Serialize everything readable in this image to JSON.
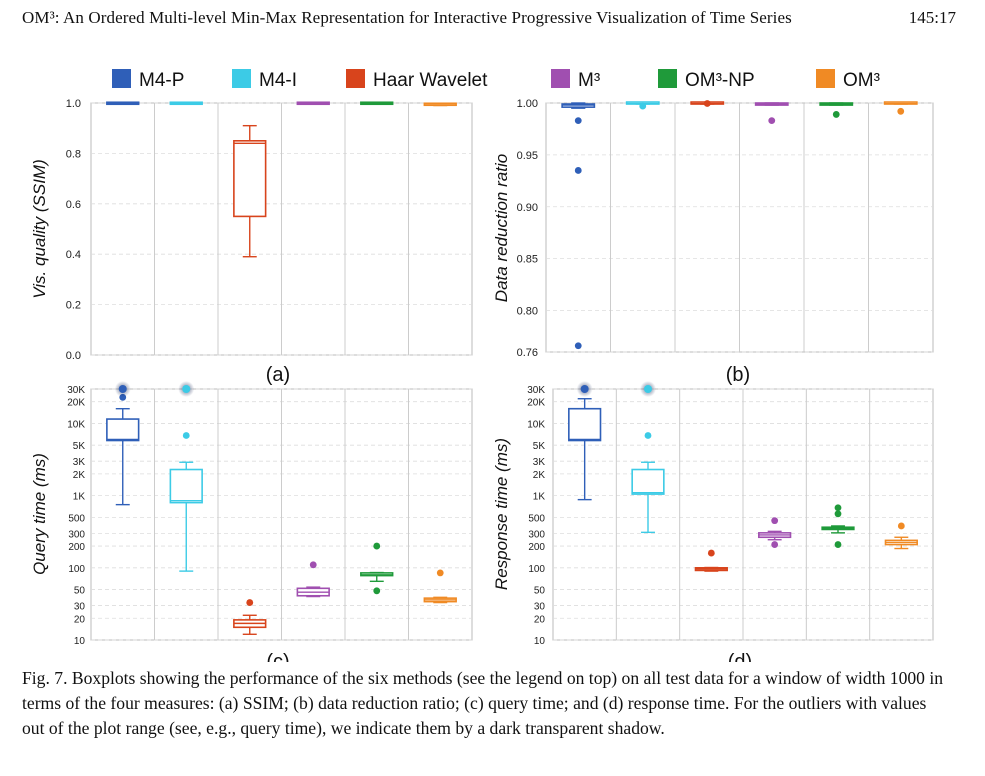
{
  "header": {
    "title": "OM³: An Ordered Multi-level Min-Max Representation for Interactive Progressive Visualization of Time Series",
    "page": "145:17"
  },
  "legend": [
    {
      "label": "M4-P",
      "color": "#2f5fb8"
    },
    {
      "label": "M4-I",
      "color": "#3ccbe6"
    },
    {
      "label": "Haar Wavelet",
      "color": "#d8441c"
    },
    {
      "label": "M³",
      "color": "#a04fb0"
    },
    {
      "label": "OM³-NP",
      "color": "#1f9a3a"
    },
    {
      "label": "OM³",
      "color": "#f08a24"
    }
  ],
  "chart_data": [
    {
      "type": "box",
      "panel": "(a)",
      "ylabel": "Vis. quality (SSIM)",
      "ylim": [
        0.0,
        1.0
      ],
      "yticks": [
        "1.0",
        "0.8",
        "0.6",
        "0.4",
        "0.2",
        "0.0"
      ],
      "ytick_values": [
        1.0,
        0.8,
        0.6,
        0.4,
        0.2,
        0.0
      ],
      "boxes": [
        {
          "series": "M4-P",
          "whislo": 0.995,
          "q1": 0.995,
          "med": 0.997,
          "q3": 0.999,
          "whishi": 1.0,
          "fliers": []
        },
        {
          "series": "M4-I",
          "whislo": 0.995,
          "q1": 0.995,
          "med": 0.997,
          "q3": 0.999,
          "whishi": 1.0,
          "fliers": []
        },
        {
          "series": "Haar Wavelet",
          "whislo": 0.39,
          "q1": 0.55,
          "med": 0.84,
          "q3": 0.85,
          "whishi": 0.91,
          "fliers": []
        },
        {
          "series": "M³",
          "whislo": 0.995,
          "q1": 0.995,
          "med": 0.997,
          "q3": 0.999,
          "whishi": 1.0,
          "fliers": []
        },
        {
          "series": "OM³-NP",
          "whislo": 0.995,
          "q1": 0.995,
          "med": 0.997,
          "q3": 0.999,
          "whishi": 1.0,
          "fliers": []
        },
        {
          "series": "OM³",
          "whislo": 0.99,
          "q1": 0.991,
          "med": 0.993,
          "q3": 0.995,
          "whishi": 0.998,
          "fliers": []
        }
      ]
    },
    {
      "type": "box",
      "panel": "(b)",
      "ylabel": "Data reduction ratio",
      "ylim": [
        0.76,
        1.0
      ],
      "yticks": [
        "1.00",
        "0.95",
        "0.90",
        "0.85",
        "0.80",
        "0.76"
      ],
      "ytick_values": [
        1.0,
        0.95,
        0.9,
        0.85,
        0.8,
        0.76
      ],
      "boxes": [
        {
          "series": "M4-P",
          "whislo": 0.995,
          "q1": 0.996,
          "med": 0.998,
          "q3": 0.999,
          "whishi": 1.0,
          "fliers": [
            0.983,
            0.935,
            0.766
          ]
        },
        {
          "series": "M4-I",
          "whislo": 0.999,
          "q1": 0.999,
          "med": 0.9995,
          "q3": 1.0,
          "whishi": 1.0,
          "fliers": [
            0.997
          ]
        },
        {
          "series": "Haar Wavelet",
          "whislo": 0.999,
          "q1": 0.999,
          "med": 0.9995,
          "q3": 1.0,
          "whishi": 1.0,
          "fliers": [
            0.9995
          ]
        },
        {
          "series": "M³",
          "whislo": 0.998,
          "q1": 0.998,
          "med": 0.999,
          "q3": 1.0,
          "whishi": 1.0,
          "fliers": [
            0.983
          ]
        },
        {
          "series": "OM³-NP",
          "whislo": 0.998,
          "q1": 0.998,
          "med": 0.999,
          "q3": 1.0,
          "whishi": 1.0,
          "fliers": [
            0.989
          ]
        },
        {
          "series": "OM³",
          "whislo": 0.999,
          "q1": 0.999,
          "med": 0.9995,
          "q3": 1.0,
          "whishi": 1.0,
          "fliers": [
            0.992
          ]
        }
      ]
    },
    {
      "type": "box",
      "panel": "(c)",
      "ylabel": "Query time (ms)",
      "yscale": "log",
      "ylim": [
        10,
        30000
      ],
      "yticks": [
        "30K",
        "20K",
        "10K",
        "5K",
        "3K",
        "2K",
        "1K",
        "500",
        "300",
        "200",
        "100",
        "50",
        "30",
        "20",
        "10"
      ],
      "ytick_values": [
        30000,
        20000,
        10000,
        5000,
        3000,
        2000,
        1000,
        500,
        300,
        200,
        100,
        50,
        30,
        20,
        10
      ],
      "boxes": [
        {
          "series": "M4-P",
          "whislo": 750,
          "q1": 5800,
          "med": 6000,
          "q3": 11500,
          "whishi": 16000,
          "fliers": [
            23000
          ],
          "clipped": [
            30000
          ]
        },
        {
          "series": "M4-I",
          "whislo": 90,
          "q1": 800,
          "med": 850,
          "q3": 2300,
          "whishi": 2900,
          "fliers": [
            6800
          ],
          "clipped": [
            30000
          ]
        },
        {
          "series": "Haar Wavelet",
          "whislo": 12,
          "q1": 15,
          "med": 17,
          "q3": 19,
          "whishi": 22,
          "fliers": [
            33
          ],
          "clipped": []
        },
        {
          "series": "M³",
          "whislo": 40,
          "q1": 41,
          "med": 46,
          "q3": 52,
          "whishi": 54,
          "fliers": [
            110
          ],
          "clipped": []
        },
        {
          "series": "OM³-NP",
          "whislo": 65,
          "q1": 78,
          "med": 80,
          "q3": 85,
          "whishi": 86,
          "fliers": [
            200,
            48
          ],
          "clipped": []
        },
        {
          "series": "OM³",
          "whislo": 33,
          "q1": 34,
          "med": 36,
          "q3": 38,
          "whishi": 39,
          "fliers": [
            85
          ],
          "clipped": []
        }
      ]
    },
    {
      "type": "box",
      "panel": "(d)",
      "ylabel": "Response time (ms)",
      "yscale": "log",
      "ylim": [
        10,
        30000
      ],
      "yticks": [
        "30K",
        "20K",
        "10K",
        "5K",
        "3K",
        "2K",
        "1K",
        "500",
        "300",
        "200",
        "100",
        "50",
        "30",
        "20",
        "10"
      ],
      "ytick_values": [
        30000,
        20000,
        10000,
        5000,
        3000,
        2000,
        1000,
        500,
        300,
        200,
        100,
        50,
        30,
        20,
        10
      ],
      "boxes": [
        {
          "series": "M4-P",
          "whislo": 880,
          "q1": 5800,
          "med": 6000,
          "q3": 16000,
          "whishi": 22000,
          "fliers": [],
          "clipped": [
            30000
          ]
        },
        {
          "series": "M4-I",
          "whislo": 310,
          "q1": 1050,
          "med": 1100,
          "q3": 2300,
          "whishi": 2900,
          "fliers": [
            6800
          ],
          "clipped": [
            30000
          ]
        },
        {
          "series": "Haar Wavelet",
          "whislo": 90,
          "q1": 92,
          "med": 96,
          "q3": 100,
          "whishi": 101,
          "fliers": [
            160
          ],
          "clipped": []
        },
        {
          "series": "M³",
          "whislo": 245,
          "q1": 265,
          "med": 285,
          "q3": 305,
          "whishi": 320,
          "fliers": [
            450,
            210
          ],
          "clipped": []
        },
        {
          "series": "OM³-NP",
          "whislo": 305,
          "q1": 340,
          "med": 350,
          "q3": 365,
          "whishi": 380,
          "fliers": [
            680,
            560,
            210
          ],
          "clipped": []
        },
        {
          "series": "OM³",
          "whislo": 185,
          "q1": 210,
          "med": 225,
          "q3": 240,
          "whishi": 265,
          "fliers": [
            380
          ],
          "clipped": []
        }
      ]
    }
  ],
  "caption": "Fig. 7.  Boxplots showing the performance of the six methods (see the legend on top) on all test data for a window of width 1000 in terms of the four measures: (a) SSIM; (b) data reduction ratio; (c) query time; and (d) response time. For the outliers with values out of the plot range (see, e.g., query time), we indicate them by a dark transparent shadow."
}
